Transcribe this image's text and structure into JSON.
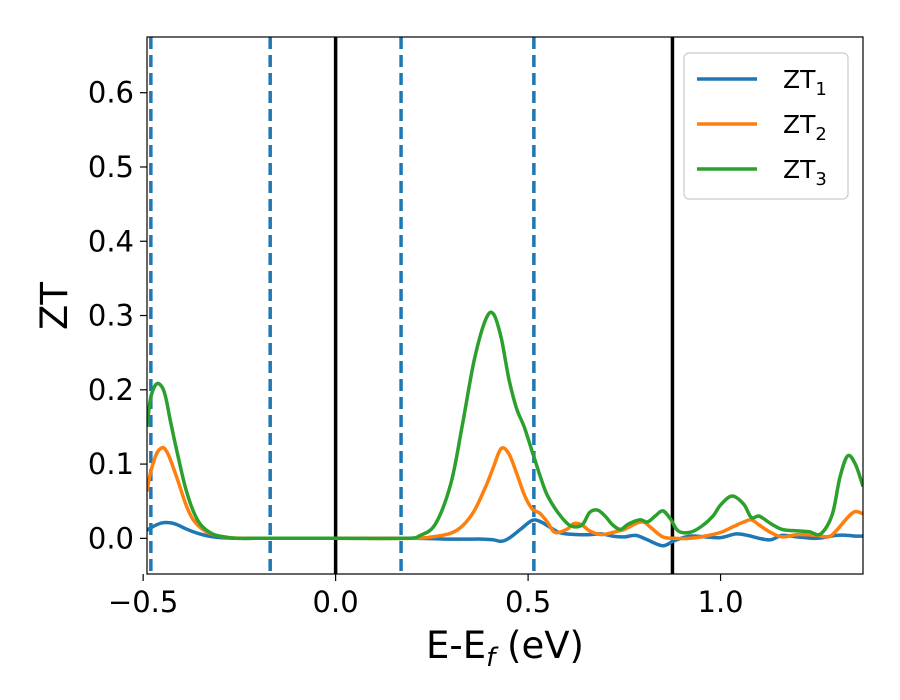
{
  "chart_data": {
    "type": "line",
    "xlabel_main": "E-E",
    "xlabel_sub": "f",
    "xlabel_unit": " (eV)",
    "ylabel": "ZT",
    "xlim": [
      -0.49,
      1.37
    ],
    "ylim": [
      -0.048,
      0.675
    ],
    "xticks": [
      -0.5,
      0.0,
      0.5,
      1.0
    ],
    "xtick_labels": [
      "−0.5",
      "0.0",
      "0.5",
      "1.0"
    ],
    "yticks": [
      0.0,
      0.1,
      0.2,
      0.3,
      0.4,
      0.5,
      0.6
    ],
    "ytick_labels": [
      "0.0",
      "0.1",
      "0.2",
      "0.3",
      "0.4",
      "0.5",
      "0.6"
    ],
    "grid": false,
    "legend_position": "top-right",
    "vlines_dashed": {
      "color": "#1f77b4",
      "x": [
        -0.48,
        -0.17,
        0.17,
        0.515
      ]
    },
    "vlines_solid": {
      "color": "#000000",
      "x": [
        0.0,
        0.875
      ]
    },
    "series": [
      {
        "name": "ZT",
        "sub": "1",
        "color": "#1f77b4",
        "x": [
          -0.49,
          -0.47,
          -0.45,
          -0.43,
          -0.41,
          -0.39,
          -0.36,
          -0.33,
          -0.3,
          -0.25,
          -0.2,
          0.0,
          0.2,
          0.3,
          0.35,
          0.38,
          0.41,
          0.43,
          0.45,
          0.48,
          0.51,
          0.53,
          0.56,
          0.58,
          0.6,
          0.63,
          0.66,
          0.69,
          0.72,
          0.75,
          0.78,
          0.81,
          0.85,
          0.88,
          0.92,
          0.96,
          1.0,
          1.04,
          1.07,
          1.1,
          1.13,
          1.16,
          1.2,
          1.25,
          1.3,
          1.33,
          1.35,
          1.37
        ],
        "y": [
          0.011,
          0.017,
          0.021,
          0.021,
          0.018,
          0.013,
          0.007,
          0.003,
          0.001,
          0.0,
          0.0,
          0.0,
          0.0,
          -0.001,
          -0.001,
          -0.001,
          -0.002,
          -0.004,
          0.0,
          0.012,
          0.024,
          0.023,
          0.014,
          0.008,
          0.006,
          0.005,
          0.005,
          0.006,
          0.003,
          0.002,
          0.004,
          -0.002,
          -0.01,
          -0.003,
          0.003,
          0.002,
          0.001,
          0.006,
          0.004,
          0.0,
          -0.002,
          0.004,
          0.002,
          0.0,
          0.004,
          0.004,
          0.003,
          0.003
        ]
      },
      {
        "name": "ZT",
        "sub": "2",
        "color": "#ff7f0e",
        "x": [
          -0.49,
          -0.48,
          -0.465,
          -0.45,
          -0.44,
          -0.43,
          -0.41,
          -0.39,
          -0.37,
          -0.34,
          -0.31,
          -0.28,
          -0.24,
          -0.2,
          0.0,
          0.2,
          0.25,
          0.3,
          0.33,
          0.36,
          0.39,
          0.41,
          0.43,
          0.45,
          0.47,
          0.49,
          0.51,
          0.53,
          0.55,
          0.57,
          0.6,
          0.62,
          0.64,
          0.66,
          0.69,
          0.72,
          0.75,
          0.78,
          0.8,
          0.82,
          0.85,
          0.88,
          0.92,
          0.96,
          1.0,
          1.03,
          1.06,
          1.08,
          1.1,
          1.13,
          1.16,
          1.2,
          1.25,
          1.28,
          1.3,
          1.33,
          1.35,
          1.37
        ],
        "y": [
          0.063,
          0.09,
          0.114,
          0.122,
          0.118,
          0.107,
          0.078,
          0.047,
          0.025,
          0.01,
          0.004,
          0.001,
          0.0,
          0.0,
          0.0,
          0.0,
          0.002,
          0.007,
          0.017,
          0.037,
          0.07,
          0.096,
          0.121,
          0.114,
          0.088,
          0.059,
          0.04,
          0.034,
          0.022,
          0.008,
          0.012,
          0.02,
          0.018,
          0.01,
          0.005,
          0.008,
          0.012,
          0.02,
          0.022,
          0.014,
          0.002,
          0.0,
          0.0,
          0.003,
          0.008,
          0.015,
          0.022,
          0.025,
          0.018,
          0.008,
          0.002,
          0.005,
          0.004,
          0.002,
          0.01,
          0.028,
          0.036,
          0.033
        ]
      },
      {
        "name": "ZT",
        "sub": "3",
        "color": "#2ca02c",
        "x": [
          -0.49,
          -0.48,
          -0.465,
          -0.45,
          -0.44,
          -0.43,
          -0.41,
          -0.39,
          -0.37,
          -0.35,
          -0.32,
          -0.29,
          -0.26,
          -0.22,
          -0.18,
          0.0,
          0.18,
          0.22,
          0.26,
          0.3,
          0.33,
          0.36,
          0.39,
          0.41,
          0.43,
          0.45,
          0.47,
          0.49,
          0.51,
          0.53,
          0.55,
          0.58,
          0.61,
          0.64,
          0.66,
          0.68,
          0.7,
          0.72,
          0.74,
          0.76,
          0.79,
          0.81,
          0.83,
          0.85,
          0.87,
          0.89,
          0.92,
          0.95,
          0.98,
          1.0,
          1.03,
          1.06,
          1.08,
          1.1,
          1.13,
          1.16,
          1.2,
          1.23,
          1.26,
          1.29,
          1.31,
          1.33,
          1.35,
          1.37
        ],
        "y": [
          0.15,
          0.19,
          0.208,
          0.203,
          0.187,
          0.16,
          0.112,
          0.068,
          0.037,
          0.018,
          0.006,
          0.002,
          0.0,
          0.0,
          0.0,
          0.0,
          0.0,
          0.004,
          0.02,
          0.075,
          0.155,
          0.24,
          0.295,
          0.302,
          0.27,
          0.215,
          0.175,
          0.15,
          0.118,
          0.086,
          0.058,
          0.033,
          0.017,
          0.018,
          0.035,
          0.038,
          0.03,
          0.018,
          0.012,
          0.019,
          0.025,
          0.022,
          0.03,
          0.037,
          0.026,
          0.01,
          0.008,
          0.016,
          0.03,
          0.045,
          0.057,
          0.046,
          0.028,
          0.03,
          0.02,
          0.012,
          0.01,
          0.009,
          0.006,
          0.032,
          0.082,
          0.111,
          0.1,
          0.07
        ]
      }
    ]
  }
}
